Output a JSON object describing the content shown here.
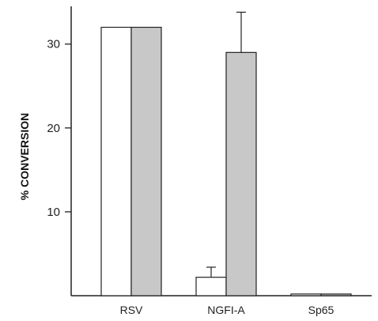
{
  "chart_data": {
    "type": "bar",
    "title": "",
    "xlabel": "",
    "ylabel": "% CONVERSION",
    "ylim": [
      0,
      34.5
    ],
    "yticks": [
      10,
      20,
      30
    ],
    "grid": false,
    "categories": [
      "RSV",
      "NGFI-A",
      "Sp65"
    ],
    "series": [
      {
        "values": [
          32.0,
          2.2,
          0.2
        ],
        "errors": [
          0,
          1.2,
          0
        ],
        "color": "#ffffff"
      },
      {
        "values": [
          32.0,
          29.0,
          0.2
        ],
        "errors": [
          0,
          4.8,
          0
        ],
        "color": "#c8c8c8"
      }
    ]
  }
}
